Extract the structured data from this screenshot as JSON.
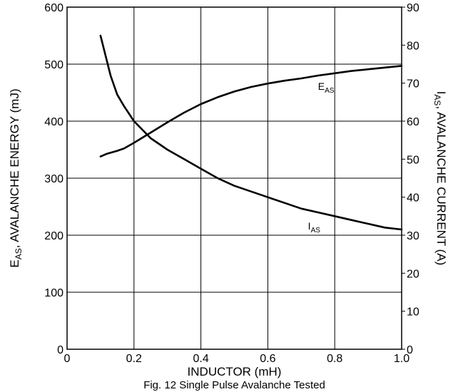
{
  "chart_data": {
    "type": "line",
    "title": "Fig. 12 Single Pulse Avalanche Tested",
    "xlabel": "INDUCTOR (mH)",
    "ylabel_left": {
      "main": "E",
      "sub": "AS",
      "rest": ", AVALANCHE ENERGY (mJ)"
    },
    "ylabel_right": {
      "main": "I",
      "sub": "AS",
      "rest": ", AVALANCHE CURRENT (A)"
    },
    "xlim": [
      0,
      1.0
    ],
    "ylim_left": [
      0,
      600
    ],
    "ylim_right": [
      0,
      90
    ],
    "x_ticks": [
      "0",
      "0.2",
      "0.4",
      "0.6",
      "0.8",
      "1.0"
    ],
    "y_left_ticks": [
      "0",
      "100",
      "200",
      "300",
      "400",
      "500",
      "600"
    ],
    "y_right_ticks": [
      "0",
      "10",
      "20",
      "30",
      "40",
      "50",
      "60",
      "70",
      "80",
      "90"
    ],
    "grid": true,
    "series": [
      {
        "main": "E",
        "sub": "AS",
        "axis": "left",
        "x": [
          0.1,
          0.12,
          0.15,
          0.17,
          0.2,
          0.25,
          0.3,
          0.35,
          0.4,
          0.45,
          0.5,
          0.55,
          0.6,
          0.65,
          0.7,
          0.75,
          0.8,
          0.85,
          0.9,
          0.95,
          1.0
        ],
        "y": [
          338,
          343,
          348,
          352,
          362,
          380,
          398,
          415,
          430,
          442,
          452,
          460,
          466,
          471,
          475,
          480,
          484,
          488,
          491,
          494,
          497
        ]
      },
      {
        "main": "I",
        "sub": "AS",
        "axis": "right",
        "x": [
          0.1,
          0.11,
          0.13,
          0.15,
          0.17,
          0.2,
          0.25,
          0.3,
          0.35,
          0.4,
          0.45,
          0.5,
          0.55,
          0.6,
          0.65,
          0.7,
          0.75,
          0.8,
          0.85,
          0.9,
          0.95,
          1.0
        ],
        "y": [
          82.5,
          79,
          72,
          67,
          64,
          60,
          55.5,
          52.5,
          50,
          47.5,
          45,
          43,
          41.5,
          40,
          38.5,
          37,
          36,
          35,
          34,
          33,
          32,
          31.5
        ]
      }
    ]
  }
}
